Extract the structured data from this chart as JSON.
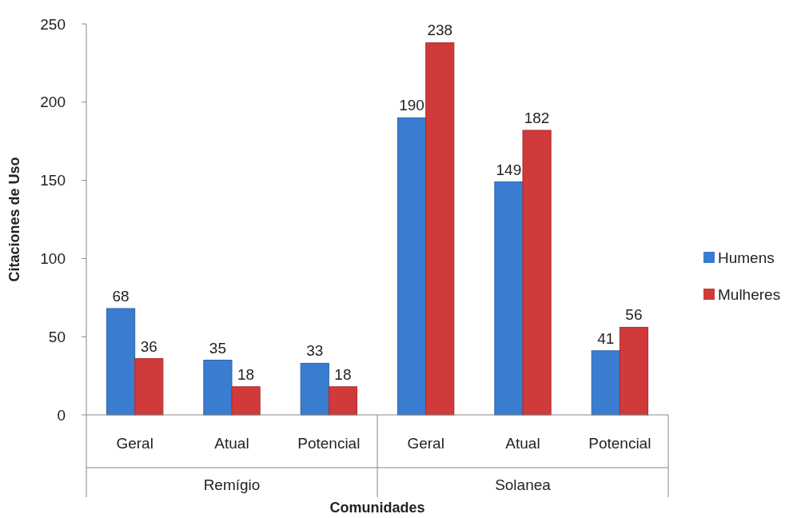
{
  "chart_data": {
    "type": "bar",
    "xlabel": "Comunidades",
    "ylabel": "Citaciones de Uso",
    "categories": [
      "Geral",
      "Atual",
      "Potencial",
      "Geral",
      "Atual",
      "Potencial"
    ],
    "annotations": [
      "Remígio",
      "Solanea"
    ],
    "series": [
      {
        "name": "Humens",
        "color": "#3a7dd0",
        "values": [
          68,
          35,
          33,
          190,
          149,
          41
        ]
      },
      {
        "name": "Mulheres",
        "color": "#d03a3a",
        "values": [
          36,
          18,
          18,
          238,
          182,
          56
        ]
      }
    ],
    "ylim": [
      0,
      250
    ],
    "yticks": [
      0,
      50,
      100,
      150,
      200,
      250
    ],
    "data_labels": true,
    "legend": "right",
    "grid": false
  }
}
